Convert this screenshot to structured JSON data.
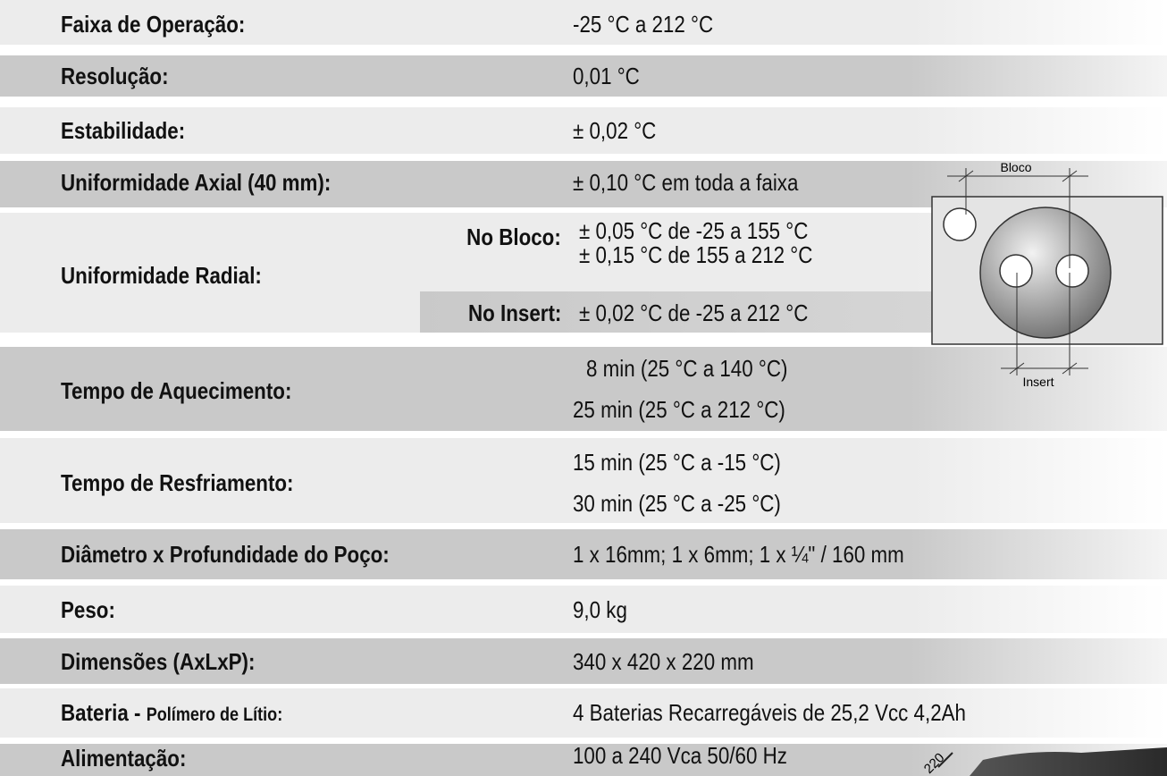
{
  "rows": [
    {
      "label": "Faixa de Operação:",
      "value": "-25 °C a 212 °C"
    },
    {
      "label": "Resolução:",
      "value": "0,01 °C"
    },
    {
      "label": "Estabilidade:",
      "value": "± 0,02 °C"
    },
    {
      "label": "Uniformidade Axial (40 mm):",
      "value": "± 0,10 °C em toda a faixa"
    },
    {
      "label": "Uniformidade Radial:",
      "sub": [
        {
          "label": "No Bloco:",
          "values": [
            "± 0,05 °C de -25 a 155 °C",
            "± 0,15 °C de 155 a 212 °C"
          ]
        },
        {
          "label": "No Insert:",
          "values": [
            "± 0,02 °C de -25 a 212 °C"
          ]
        }
      ]
    },
    {
      "label": "Tempo de Aquecimento:",
      "values": [
        "8 min (25 °C a 140 °C)",
        "25 min (25 °C a 212 °C)"
      ]
    },
    {
      "label": "Tempo de Resfriamento:",
      "values": [
        "15 min (25 °C a -15 °C)",
        "30 min (25 °C a -25 °C)"
      ]
    },
    {
      "label": "Diâmetro x Profundidade do Poço:",
      "value": "1 x 16mm; 1 x 6mm; 1 x ¼\"  /  160 mm"
    },
    {
      "label": "Peso:",
      "value": "9,0 kg"
    },
    {
      "label": "Dimensões (AxLxP):",
      "value": "340 x 420 x 220 mm"
    },
    {
      "label": "Bateria -",
      "label_detail": "Polímero de Lítio:",
      "value": "4 Baterias Recarregáveis de 25,2 Vcc 4,2Ah"
    },
    {
      "label": "Alimentação:",
      "value": "100 a 240 Vca 50/60 Hz"
    }
  ],
  "diagram": {
    "top_label": "Bloco",
    "bottom_label": "Insert"
  },
  "photo_label": "220"
}
